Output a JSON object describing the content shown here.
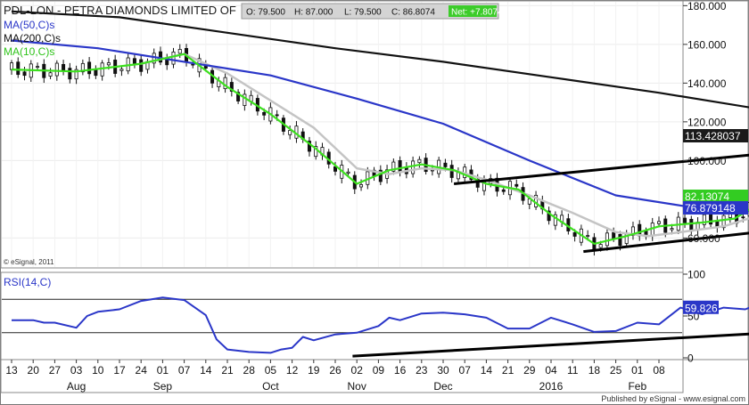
{
  "header": {
    "symbol_title": "PDL-LON - PETRA DIAMONDS LIMITED OF",
    "quote_open": "O: 79.500",
    "quote_high": "H: 87.000",
    "quote_low": "L: 79.500",
    "quote_close": "C: 86.8074",
    "quote_net": "Net: +7.8074"
  },
  "legend": {
    "ma50": "MA(50,C)s",
    "ma200": "MA(200,C)s",
    "ma10": "MA(10,C)s"
  },
  "copyright": "© eSignal, 2011",
  "footer": "Published by eSignal - www.esignal.com",
  "colors": {
    "ma50": "#2a36c8",
    "ma200": "#111111",
    "ma10": "#3ce01e",
    "ma_grey": "#c4c4c4",
    "rsi": "#2a36c8",
    "trendline": "#000000",
    "price_tag_dark": "#1a1a1a",
    "price_tag_green": "#33cc22",
    "price_tag_blue": "#2a36c8"
  },
  "chart_data": [
    {
      "type": "candlestick",
      "title": "PDL-LON - PETRA DIAMONDS LIMITED OF",
      "ylim": [
        45,
        182
      ],
      "y_ticks": [
        {
          "v": 180,
          "label": "180.000"
        },
        {
          "v": 160,
          "label": "160.000"
        },
        {
          "v": 140,
          "label": "140.000"
        },
        {
          "v": 120,
          "label": "120.000"
        },
        {
          "v": 100,
          "label": "100.000"
        },
        {
          "v": 60,
          "label": "60.000"
        }
      ],
      "price_tags": [
        {
          "v": 113.428037,
          "label": "113.428037",
          "series": "MA(200,C)s"
        },
        {
          "v": 82.13074,
          "label": "82.13074",
          "series": "MA(10,C)s"
        },
        {
          "v": 76.879148,
          "label": "76.879148",
          "series": "MA(50,C)s"
        }
      ],
      "x_ticks": [
        "13",
        "20",
        "27",
        "03",
        "10",
        "17",
        "24",
        "01",
        "07",
        "14",
        "21",
        "28",
        "05",
        "12",
        "19",
        "26",
        "02",
        "09",
        "16",
        "23",
        "30",
        "07",
        "14",
        "21",
        "29",
        "04",
        "11",
        "18",
        "25",
        "01",
        "08"
      ],
      "x_months": [
        {
          "label": "Aug",
          "at": 3
        },
        {
          "label": "Sep",
          "at": 7
        },
        {
          "label": "Oct",
          "at": 12
        },
        {
          "label": "Nov",
          "at": 16
        },
        {
          "label": "Dec",
          "at": 20
        },
        {
          "label": "2016",
          "at": 25
        },
        {
          "label": "Feb",
          "at": 29
        }
      ],
      "series": [
        {
          "name": "MA(200,C)s",
          "points": [
            [
              0,
              177
            ],
            [
              5,
              174
            ],
            [
              10,
              166
            ],
            [
              15,
              158
            ],
            [
              20,
              151
            ],
            [
              25,
              143
            ],
            [
              30,
              135
            ],
            [
              35,
              126
            ],
            [
              40,
              118
            ],
            [
              42,
              116
            ],
            [
              43.5,
              114.5
            ],
            [
              45,
              113.4
            ]
          ]
        },
        {
          "name": "MA(50,C)s",
          "points": [
            [
              0,
              162
            ],
            [
              4,
              158
            ],
            [
              8,
              151
            ],
            [
              12,
              144
            ],
            [
              16,
              132
            ],
            [
              20,
              119
            ],
            [
              24,
              100
            ],
            [
              28,
              82
            ],
            [
              32,
              75
            ],
            [
              36,
              73
            ],
            [
              40,
              73.5
            ],
            [
              43,
              75
            ],
            [
              45,
              76.9
            ]
          ]
        },
        {
          "name": "MA(10,C)s",
          "points": [
            [
              0,
              147
            ],
            [
              3,
              146
            ],
            [
              6,
              150
            ],
            [
              8,
              155
            ],
            [
              10,
              138
            ],
            [
              12,
              124
            ],
            [
              14,
              107
            ],
            [
              16,
              88
            ],
            [
              17.5,
              95
            ],
            [
              19,
              98
            ],
            [
              20.5,
              95
            ],
            [
              22,
              88
            ],
            [
              23.5,
              85
            ],
            [
              25,
              72
            ],
            [
              27,
              57
            ],
            [
              28.5,
              61
            ],
            [
              30,
              66
            ],
            [
              32,
              68
            ],
            [
              33.5,
              70
            ],
            [
              35,
              80
            ],
            [
              36.5,
              89
            ],
            [
              38,
              86
            ],
            [
              40,
              80
            ],
            [
              41,
              77
            ],
            [
              42,
              80
            ],
            [
              44,
              81
            ],
            [
              45,
              82.1
            ]
          ]
        },
        {
          "name": "MA(20,C)s",
          "points": [
            [
              6,
              150
            ],
            [
              8,
              155
            ],
            [
              9,
              150
            ],
            [
              10,
              145
            ],
            [
              12,
              131
            ],
            [
              14,
              117
            ],
            [
              16,
              96
            ],
            [
              17.5,
              93
            ],
            [
              19,
              96
            ],
            [
              20.5,
              95
            ],
            [
              22,
              90
            ],
            [
              24,
              82
            ],
            [
              26,
              73
            ],
            [
              28,
              63
            ],
            [
              29.5,
              61
            ],
            [
              31,
              63
            ],
            [
              33,
              66
            ],
            [
              35,
              73
            ],
            [
              37,
              80
            ],
            [
              38.5,
              84
            ],
            [
              40,
              85
            ],
            [
              41,
              81
            ],
            [
              42,
              80
            ],
            [
              43,
              79
            ],
            [
              44,
              80
            ],
            [
              45,
              81
            ]
          ]
        }
      ],
      "trendlines": [
        {
          "name": "upper-trendline",
          "points": [
            [
              20.5,
              88
            ],
            [
              44.5,
              114
            ]
          ]
        },
        {
          "name": "lower-trendline",
          "points": [
            [
              26.5,
              53
            ],
            [
              45,
              76
            ]
          ]
        }
      ]
    },
    {
      "type": "line",
      "title": "RSI(14,C)",
      "ylim": [
        0,
        100
      ],
      "y_ticks": [
        {
          "v": 100,
          "label": "100"
        },
        {
          "v": 50,
          "label": "50"
        },
        {
          "v": 0,
          "label": "0"
        }
      ],
      "reference_lines": [
        70,
        30
      ],
      "value_tag": {
        "v": 59.826,
        "label": "59.826"
      },
      "series": [
        {
          "name": "RSI(14,C)",
          "points": [
            [
              0,
              45
            ],
            [
              1,
              45
            ],
            [
              1.5,
              42
            ],
            [
              2,
              42
            ],
            [
              3,
              36
            ],
            [
              3.5,
              50
            ],
            [
              4,
              55
            ],
            [
              5,
              58
            ],
            [
              6,
              68
            ],
            [
              7,
              72
            ],
            [
              8,
              69
            ],
            [
              9,
              51
            ],
            [
              9.5,
              22
            ],
            [
              10,
              10
            ],
            [
              11,
              7
            ],
            [
              12,
              6
            ],
            [
              12.5,
              10
            ],
            [
              13,
              12
            ],
            [
              13.5,
              25
            ],
            [
              14,
              21
            ],
            [
              15,
              28
            ],
            [
              16,
              30
            ],
            [
              17,
              38
            ],
            [
              17.5,
              48
            ],
            [
              18,
              45
            ],
            [
              19,
              53
            ],
            [
              20,
              54
            ],
            [
              21,
              52
            ],
            [
              22,
              48
            ],
            [
              23,
              35
            ],
            [
              24,
              35
            ],
            [
              25,
              48
            ],
            [
              26,
              40
            ],
            [
              27,
              31
            ],
            [
              28,
              32
            ],
            [
              29,
              42
            ],
            [
              30,
              40
            ],
            [
              31,
              60
            ],
            [
              32,
              52
            ],
            [
              33,
              60
            ],
            [
              34,
              58
            ],
            [
              35,
              68
            ],
            [
              36,
              82
            ],
            [
              37,
              80
            ],
            [
              38,
              64
            ],
            [
              39,
              55
            ],
            [
              40,
              58
            ],
            [
              41,
              44
            ],
            [
              42,
              48
            ],
            [
              42.5,
              70
            ],
            [
              43,
              62
            ],
            [
              43.5,
              58
            ],
            [
              44,
              56
            ],
            [
              45,
              60
            ]
          ]
        },
        {
          "name": "rsi-trendline",
          "points": [
            [
              15.8,
              2
            ],
            [
              45,
              44
            ]
          ]
        }
      ]
    }
  ]
}
